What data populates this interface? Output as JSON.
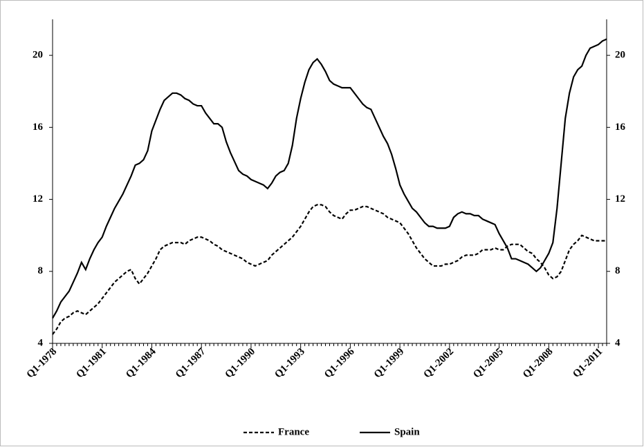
{
  "chart_data": {
    "type": "line",
    "categories": [
      "Q1-1978",
      null,
      null,
      null,
      null,
      null,
      null,
      null,
      null,
      null,
      null,
      null,
      "Q1-1981",
      null,
      null,
      null,
      null,
      null,
      null,
      null,
      null,
      null,
      null,
      null,
      "Q1-1984",
      null,
      null,
      null,
      null,
      null,
      null,
      null,
      null,
      null,
      null,
      null,
      "Q1-1987",
      null,
      null,
      null,
      null,
      null,
      null,
      null,
      null,
      null,
      null,
      null,
      "Q1-1990",
      null,
      null,
      null,
      null,
      null,
      null,
      null,
      null,
      null,
      null,
      null,
      "Q1-1993",
      null,
      null,
      null,
      null,
      null,
      null,
      null,
      null,
      null,
      null,
      null,
      "Q1-1996",
      null,
      null,
      null,
      null,
      null,
      null,
      null,
      null,
      null,
      null,
      null,
      "Q1-1999",
      null,
      null,
      null,
      null,
      null,
      null,
      null,
      null,
      null,
      null,
      null,
      "Q1-2002",
      null,
      null,
      null,
      null,
      null,
      null,
      null,
      null,
      null,
      null,
      null,
      "Q1-2005",
      null,
      null,
      null,
      null,
      null,
      null,
      null,
      null,
      null,
      null,
      null,
      "Q1-2008",
      null,
      null,
      null,
      null,
      null,
      null,
      null,
      null,
      null,
      null,
      null,
      "Q1-2011",
      null,
      null
    ],
    "series": [
      {
        "name": "France",
        "color": "#000000",
        "line_style": "dashed",
        "values": [
          4.5,
          4.8,
          5.2,
          5.4,
          5.5,
          5.7,
          5.8,
          5.7,
          5.6,
          5.8,
          6.0,
          6.2,
          6.5,
          6.8,
          7.1,
          7.4,
          7.6,
          7.8,
          8.0,
          8.1,
          7.6,
          7.3,
          7.6,
          7.9,
          8.3,
          8.7,
          9.2,
          9.4,
          9.5,
          9.6,
          9.6,
          9.6,
          9.5,
          9.7,
          9.8,
          9.9,
          9.9,
          9.8,
          9.7,
          9.5,
          9.4,
          9.2,
          9.1,
          9.0,
          8.9,
          8.8,
          8.7,
          8.5,
          8.4,
          8.3,
          8.4,
          8.5,
          8.6,
          8.9,
          9.1,
          9.3,
          9.5,
          9.7,
          9.9,
          10.2,
          10.5,
          10.9,
          11.3,
          11.6,
          11.7,
          11.7,
          11.6,
          11.3,
          11.1,
          11.0,
          10.9,
          11.2,
          11.4,
          11.4,
          11.5,
          11.6,
          11.6,
          11.5,
          11.4,
          11.3,
          11.2,
          11.0,
          10.9,
          10.8,
          10.7,
          10.4,
          10.1,
          9.7,
          9.3,
          9.0,
          8.7,
          8.5,
          8.3,
          8.3,
          8.3,
          8.4,
          8.4,
          8.5,
          8.6,
          8.8,
          8.9,
          8.9,
          8.9,
          9.0,
          9.2,
          9.2,
          9.2,
          9.3,
          9.2,
          9.2,
          9.4,
          9.5,
          9.5,
          9.5,
          9.3,
          9.1,
          9.0,
          8.7,
          8.5,
          8.2,
          7.8,
          7.6,
          7.7,
          8.0,
          8.6,
          9.2,
          9.5,
          9.7,
          10.0,
          9.9,
          9.8,
          9.7,
          9.7,
          9.7,
          9.7
        ]
      },
      {
        "name": "Spain",
        "color": "#000000",
        "line_style": "solid",
        "values": [
          5.4,
          5.8,
          6.3,
          6.6,
          6.9,
          7.4,
          7.9,
          8.5,
          8.1,
          8.7,
          9.2,
          9.6,
          9.9,
          10.5,
          11.0,
          11.5,
          11.9,
          12.3,
          12.8,
          13.3,
          13.9,
          14.0,
          14.2,
          14.7,
          15.8,
          16.4,
          17.0,
          17.5,
          17.7,
          17.9,
          17.9,
          17.8,
          17.6,
          17.5,
          17.3,
          17.2,
          17.2,
          16.8,
          16.5,
          16.2,
          16.2,
          16.0,
          15.2,
          14.6,
          14.1,
          13.6,
          13.4,
          13.3,
          13.1,
          13.0,
          12.9,
          12.8,
          12.6,
          12.9,
          13.3,
          13.5,
          13.6,
          14.0,
          15.0,
          16.5,
          17.6,
          18.5,
          19.2,
          19.6,
          19.8,
          19.5,
          19.1,
          18.6,
          18.4,
          18.3,
          18.2,
          18.2,
          18.2,
          17.9,
          17.6,
          17.3,
          17.1,
          17.0,
          16.5,
          16.0,
          15.5,
          15.1,
          14.5,
          13.7,
          12.8,
          12.3,
          11.9,
          11.5,
          11.3,
          11.0,
          10.7,
          10.5,
          10.5,
          10.4,
          10.4,
          10.4,
          10.5,
          11.0,
          11.2,
          11.3,
          11.2,
          11.2,
          11.1,
          11.1,
          10.9,
          10.8,
          10.7,
          10.6,
          10.1,
          9.7,
          9.3,
          8.7,
          8.7,
          8.6,
          8.5,
          8.4,
          8.2,
          8.0,
          8.2,
          8.6,
          9.0,
          9.6,
          11.5,
          14.0,
          16.5,
          17.9,
          18.8,
          19.2,
          19.4,
          20.0,
          20.4,
          20.5,
          20.6,
          20.8,
          20.9
        ]
      }
    ],
    "ylim": [
      4,
      22
    ],
    "yticks": [
      4,
      8,
      12,
      16,
      20
    ],
    "y2lim": [
      4,
      22
    ],
    "y2ticks": [
      4,
      8,
      12,
      16,
      20
    ],
    "grid": false,
    "legend": "bottom"
  }
}
